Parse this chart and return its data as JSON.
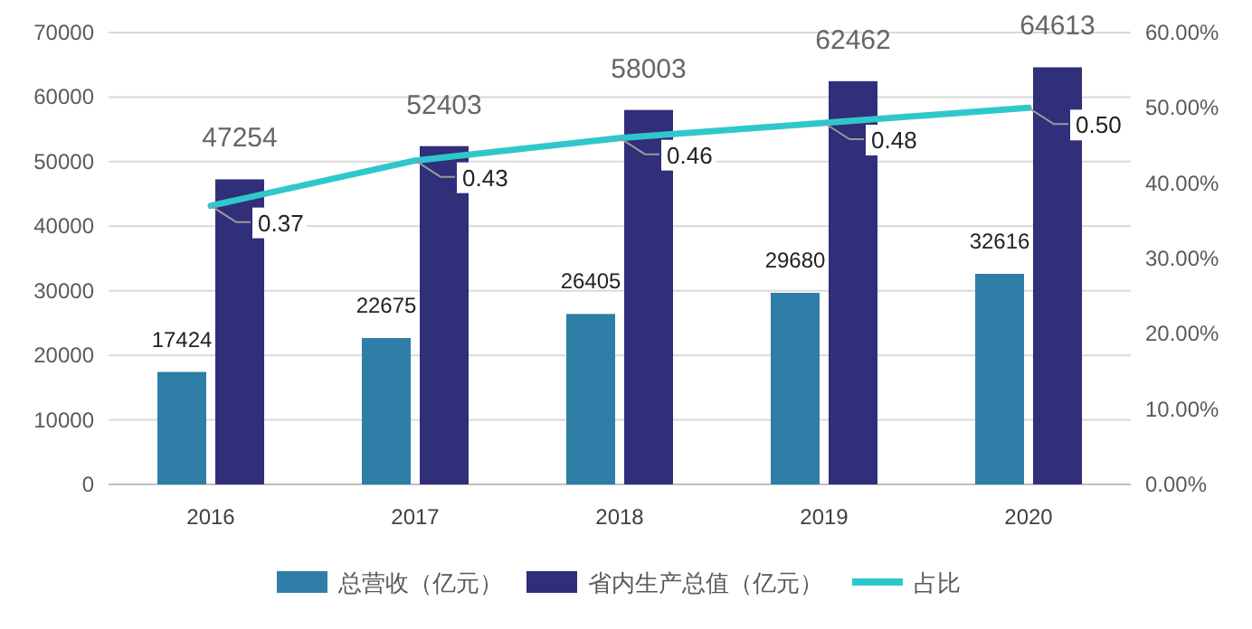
{
  "chart_data": {
    "type": "bar",
    "categories": [
      "2016",
      "2017",
      "2018",
      "2019",
      "2020"
    ],
    "series": [
      {
        "name": "总营收（亿元）",
        "color": "#2e7ea8",
        "values": [
          17424,
          22675,
          26405,
          29680,
          32616
        ]
      },
      {
        "name": "省内生产总值（亿元）",
        "color": "#312e7a",
        "values": [
          47254,
          52403,
          58003,
          62462,
          64613
        ]
      },
      {
        "name": "占比",
        "color": "#2ec8cc",
        "type": "line",
        "axis": "y2",
        "values": [
          0.37,
          0.43,
          0.46,
          0.48,
          0.5
        ],
        "value_labels": [
          "0.37",
          "0.43",
          "0.46",
          "0.48",
          "0.50"
        ]
      }
    ],
    "ylim": [
      0,
      70000
    ],
    "yticks": [
      0,
      10000,
      20000,
      30000,
      40000,
      50000,
      60000,
      70000
    ],
    "y2lim": [
      0,
      0.6
    ],
    "y2ticks": [
      {
        "value": 0,
        "label": "0.00%"
      },
      {
        "value": 0.1,
        "label": "10.00%"
      },
      {
        "value": 0.2,
        "label": "20.00%"
      },
      {
        "value": 0.3,
        "label": "30.00%"
      },
      {
        "value": 0.4,
        "label": "40.00%"
      },
      {
        "value": 0.5,
        "label": "50.00%"
      },
      {
        "value": 0.6,
        "label": "60.00%"
      }
    ],
    "grid": "y",
    "legend": "bottom",
    "data_labels": true,
    "marker": "none",
    "line_style": "solid"
  }
}
